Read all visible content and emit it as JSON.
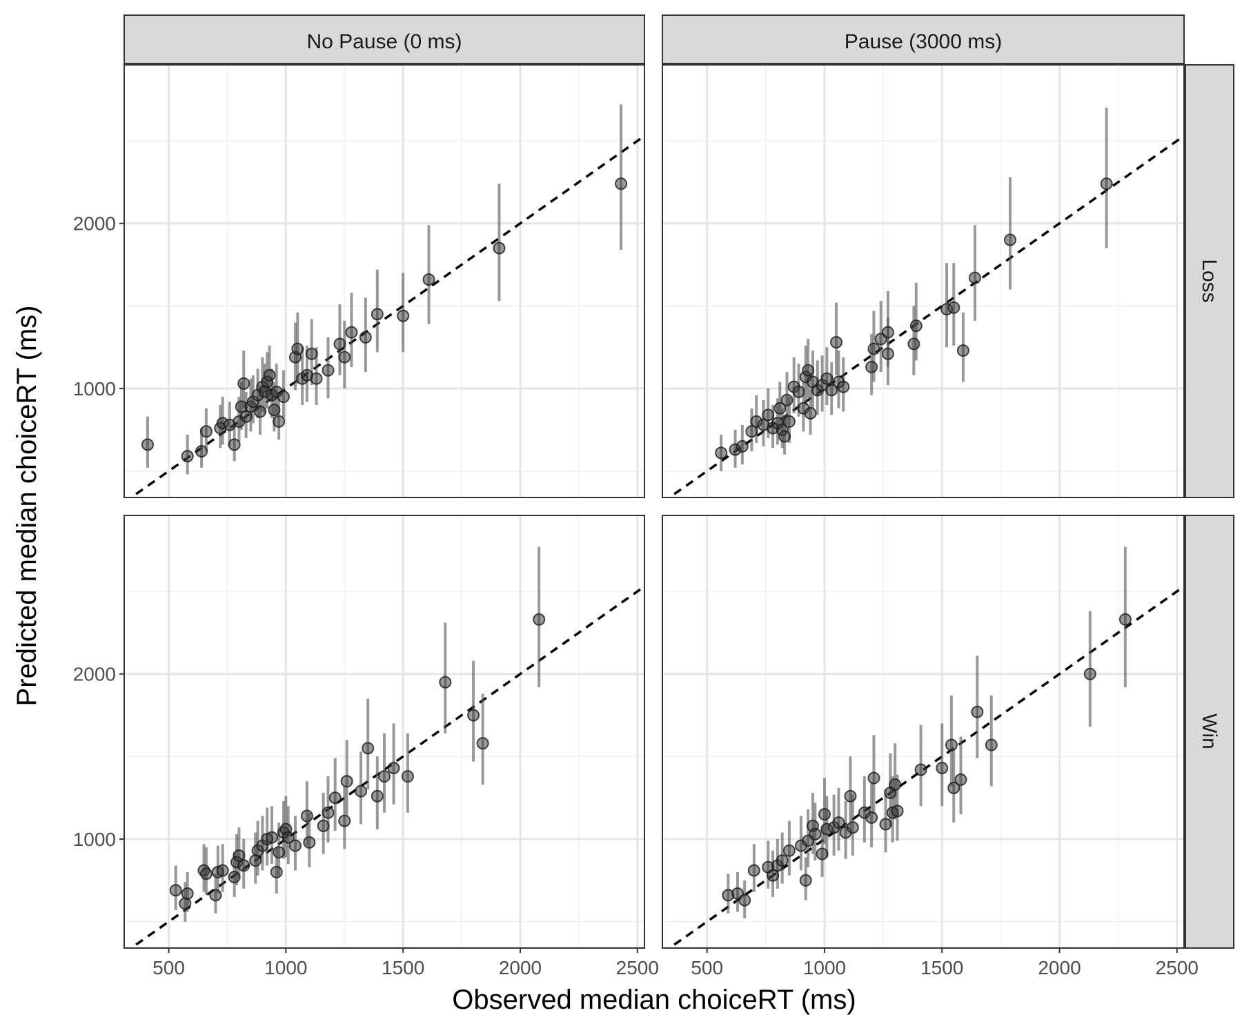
{
  "chart_data": {
    "type": "scatter",
    "title": "",
    "xlabel": "Observed median choiceRT (ms)",
    "ylabel": "Predicted median choiceRT (ms)",
    "xlim": [
      310,
      2530
    ],
    "ylim": [
      340,
      2960
    ],
    "x_ticks": [
      500,
      1000,
      1500,
      2000,
      2500
    ],
    "y_ticks": [
      1000,
      2000
    ],
    "grid": true,
    "reference_line": "identity (y = x), dashed black",
    "col_facets": [
      "No Pause (0 ms)",
      "Pause (3000 ms)"
    ],
    "row_facets": [
      "Loss",
      "Win"
    ],
    "panels": [
      {
        "col": "No Pause (0 ms)",
        "row": "Loss",
        "points": [
          [
            410,
            660,
            520,
            830
          ],
          [
            580,
            590,
            480,
            720
          ],
          [
            640,
            620,
            520,
            760
          ],
          [
            660,
            740,
            620,
            880
          ],
          [
            720,
            760,
            640,
            900
          ],
          [
            730,
            790,
            660,
            950
          ],
          [
            760,
            780,
            650,
            920
          ],
          [
            780,
            660,
            560,
            790
          ],
          [
            800,
            800,
            680,
            950
          ],
          [
            810,
            890,
            750,
            1040
          ],
          [
            820,
            1030,
            880,
            1230
          ],
          [
            830,
            830,
            700,
            980
          ],
          [
            850,
            890,
            740,
            1060
          ],
          [
            860,
            920,
            790,
            1080
          ],
          [
            880,
            960,
            820,
            1120
          ],
          [
            890,
            860,
            720,
            1020
          ],
          [
            900,
            1010,
            860,
            1190
          ],
          [
            910,
            980,
            850,
            1150
          ],
          [
            920,
            1040,
            880,
            1220
          ],
          [
            930,
            1080,
            920,
            1260
          ],
          [
            940,
            960,
            820,
            1120
          ],
          [
            950,
            870,
            740,
            1040
          ],
          [
            960,
            980,
            840,
            1150
          ],
          [
            970,
            800,
            690,
            940
          ],
          [
            990,
            950,
            820,
            1110
          ],
          [
            1040,
            1190,
            990,
            1400
          ],
          [
            1050,
            1240,
            1030,
            1460
          ],
          [
            1070,
            1060,
            900,
            1250
          ],
          [
            1090,
            1080,
            920,
            1260
          ],
          [
            1110,
            1210,
            1020,
            1420
          ],
          [
            1130,
            1060,
            900,
            1250
          ],
          [
            1180,
            1110,
            940,
            1310
          ],
          [
            1230,
            1270,
            1080,
            1510
          ],
          [
            1250,
            1190,
            1000,
            1410
          ],
          [
            1280,
            1340,
            1130,
            1580
          ],
          [
            1340,
            1310,
            1100,
            1550
          ],
          [
            1390,
            1450,
            1220,
            1720
          ],
          [
            1500,
            1440,
            1220,
            1700
          ],
          [
            1610,
            1660,
            1390,
            1990
          ],
          [
            1910,
            1850,
            1530,
            2240
          ],
          [
            2430,
            2240,
            1840,
            2720
          ]
        ]
      },
      {
        "col": "Pause (3000 ms)",
        "row": "Loss",
        "points": [
          [
            560,
            610,
            500,
            720
          ],
          [
            620,
            630,
            520,
            750
          ],
          [
            650,
            650,
            540,
            780
          ],
          [
            690,
            740,
            620,
            880
          ],
          [
            710,
            800,
            670,
            960
          ],
          [
            740,
            780,
            650,
            930
          ],
          [
            760,
            840,
            700,
            1000
          ],
          [
            780,
            760,
            640,
            900
          ],
          [
            800,
            790,
            660,
            940
          ],
          [
            810,
            880,
            740,
            1040
          ],
          [
            820,
            750,
            640,
            880
          ],
          [
            830,
            710,
            600,
            840
          ],
          [
            840,
            930,
            780,
            1100
          ],
          [
            850,
            800,
            670,
            950
          ],
          [
            870,
            1010,
            850,
            1190
          ],
          [
            890,
            980,
            830,
            1150
          ],
          [
            910,
            880,
            740,
            1040
          ],
          [
            920,
            1070,
            900,
            1260
          ],
          [
            930,
            1110,
            940,
            1300
          ],
          [
            940,
            850,
            720,
            1000
          ],
          [
            950,
            1040,
            880,
            1230
          ],
          [
            970,
            990,
            840,
            1170
          ],
          [
            990,
            1020,
            860,
            1200
          ],
          [
            1010,
            1060,
            900,
            1250
          ],
          [
            1030,
            990,
            840,
            1160
          ],
          [
            1050,
            1280,
            1080,
            1520
          ],
          [
            1060,
            1040,
            880,
            1230
          ],
          [
            1080,
            1010,
            860,
            1190
          ],
          [
            1200,
            1130,
            960,
            1330
          ],
          [
            1210,
            1240,
            1040,
            1470
          ],
          [
            1240,
            1300,
            1100,
            1530
          ],
          [
            1270,
            1210,
            1020,
            1430
          ],
          [
            1270,
            1340,
            1130,
            1590
          ],
          [
            1380,
            1270,
            1080,
            1500
          ],
          [
            1390,
            1380,
            1170,
            1640
          ],
          [
            1520,
            1480,
            1250,
            1760
          ],
          [
            1550,
            1490,
            1260,
            1760
          ],
          [
            1590,
            1230,
            1040,
            1460
          ],
          [
            1640,
            1670,
            1410,
            1990
          ],
          [
            1790,
            1900,
            1600,
            2280
          ],
          [
            2200,
            2240,
            1850,
            2700
          ]
        ]
      },
      {
        "col": "No Pause (0 ms)",
        "row": "Win",
        "points": [
          [
            530,
            690,
            570,
            840
          ],
          [
            570,
            610,
            500,
            740
          ],
          [
            580,
            670,
            560,
            800
          ],
          [
            650,
            810,
            680,
            970
          ],
          [
            660,
            790,
            660,
            950
          ],
          [
            700,
            660,
            550,
            790
          ],
          [
            710,
            800,
            670,
            960
          ],
          [
            730,
            810,
            680,
            970
          ],
          [
            780,
            770,
            650,
            920
          ],
          [
            790,
            860,
            720,
            1030
          ],
          [
            800,
            900,
            760,
            1070
          ],
          [
            820,
            840,
            700,
            1000
          ],
          [
            870,
            870,
            730,
            1040
          ],
          [
            880,
            930,
            780,
            1110
          ],
          [
            900,
            960,
            810,
            1140
          ],
          [
            920,
            1000,
            840,
            1190
          ],
          [
            940,
            1010,
            850,
            1200
          ],
          [
            960,
            800,
            670,
            950
          ],
          [
            970,
            920,
            780,
            1100
          ],
          [
            990,
            1040,
            880,
            1230
          ],
          [
            1000,
            1060,
            890,
            1260
          ],
          [
            1010,
            1010,
            850,
            1200
          ],
          [
            1040,
            960,
            810,
            1140
          ],
          [
            1090,
            1140,
            960,
            1350
          ],
          [
            1100,
            980,
            830,
            1160
          ],
          [
            1160,
            1080,
            910,
            1280
          ],
          [
            1180,
            1160,
            980,
            1380
          ],
          [
            1210,
            1250,
            1050,
            1490
          ],
          [
            1250,
            1110,
            940,
            1320
          ],
          [
            1260,
            1350,
            1140,
            1600
          ],
          [
            1320,
            1290,
            1090,
            1530
          ],
          [
            1350,
            1550,
            1300,
            1850
          ],
          [
            1390,
            1260,
            1060,
            1500
          ],
          [
            1420,
            1380,
            1160,
            1640
          ],
          [
            1460,
            1430,
            1210,
            1700
          ],
          [
            1520,
            1380,
            1160,
            1640
          ],
          [
            1680,
            1950,
            1640,
            2310
          ],
          [
            1800,
            1750,
            1470,
            2080
          ],
          [
            1840,
            1580,
            1330,
            1880
          ],
          [
            2080,
            2330,
            1920,
            2770
          ]
        ]
      },
      {
        "col": "Pause (3000 ms)",
        "row": "Win",
        "points": [
          [
            590,
            660,
            550,
            790
          ],
          [
            630,
            670,
            560,
            800
          ],
          [
            660,
            630,
            520,
            750
          ],
          [
            700,
            810,
            680,
            970
          ],
          [
            760,
            830,
            700,
            990
          ],
          [
            780,
            780,
            650,
            930
          ],
          [
            800,
            840,
            700,
            1000
          ],
          [
            820,
            870,
            730,
            1040
          ],
          [
            850,
            930,
            780,
            1110
          ],
          [
            900,
            960,
            810,
            1140
          ],
          [
            920,
            750,
            630,
            890
          ],
          [
            930,
            990,
            830,
            1180
          ],
          [
            950,
            1080,
            910,
            1280
          ],
          [
            960,
            1030,
            870,
            1220
          ],
          [
            990,
            910,
            770,
            1080
          ],
          [
            1000,
            1150,
            970,
            1370
          ],
          [
            1010,
            1060,
            890,
            1260
          ],
          [
            1040,
            1070,
            900,
            1270
          ],
          [
            1060,
            1100,
            930,
            1310
          ],
          [
            1090,
            1040,
            880,
            1230
          ],
          [
            1110,
            1260,
            1060,
            1500
          ],
          [
            1120,
            1070,
            900,
            1270
          ],
          [
            1170,
            1160,
            980,
            1380
          ],
          [
            1200,
            1130,
            950,
            1340
          ],
          [
            1210,
            1370,
            1150,
            1630
          ],
          [
            1260,
            1090,
            920,
            1300
          ],
          [
            1280,
            1280,
            1080,
            1520
          ],
          [
            1290,
            1160,
            980,
            1380
          ],
          [
            1300,
            1330,
            1120,
            1580
          ],
          [
            1310,
            1170,
            990,
            1390
          ],
          [
            1410,
            1420,
            1200,
            1690
          ],
          [
            1500,
            1430,
            1200,
            1700
          ],
          [
            1540,
            1570,
            1320,
            1870
          ],
          [
            1550,
            1310,
            1100,
            1550
          ],
          [
            1580,
            1360,
            1150,
            1620
          ],
          [
            1650,
            1770,
            1490,
            2110
          ],
          [
            1710,
            1570,
            1320,
            1870
          ],
          [
            2130,
            2000,
            1680,
            2380
          ],
          [
            2280,
            2330,
            1920,
            2770
          ]
        ]
      }
    ]
  }
}
